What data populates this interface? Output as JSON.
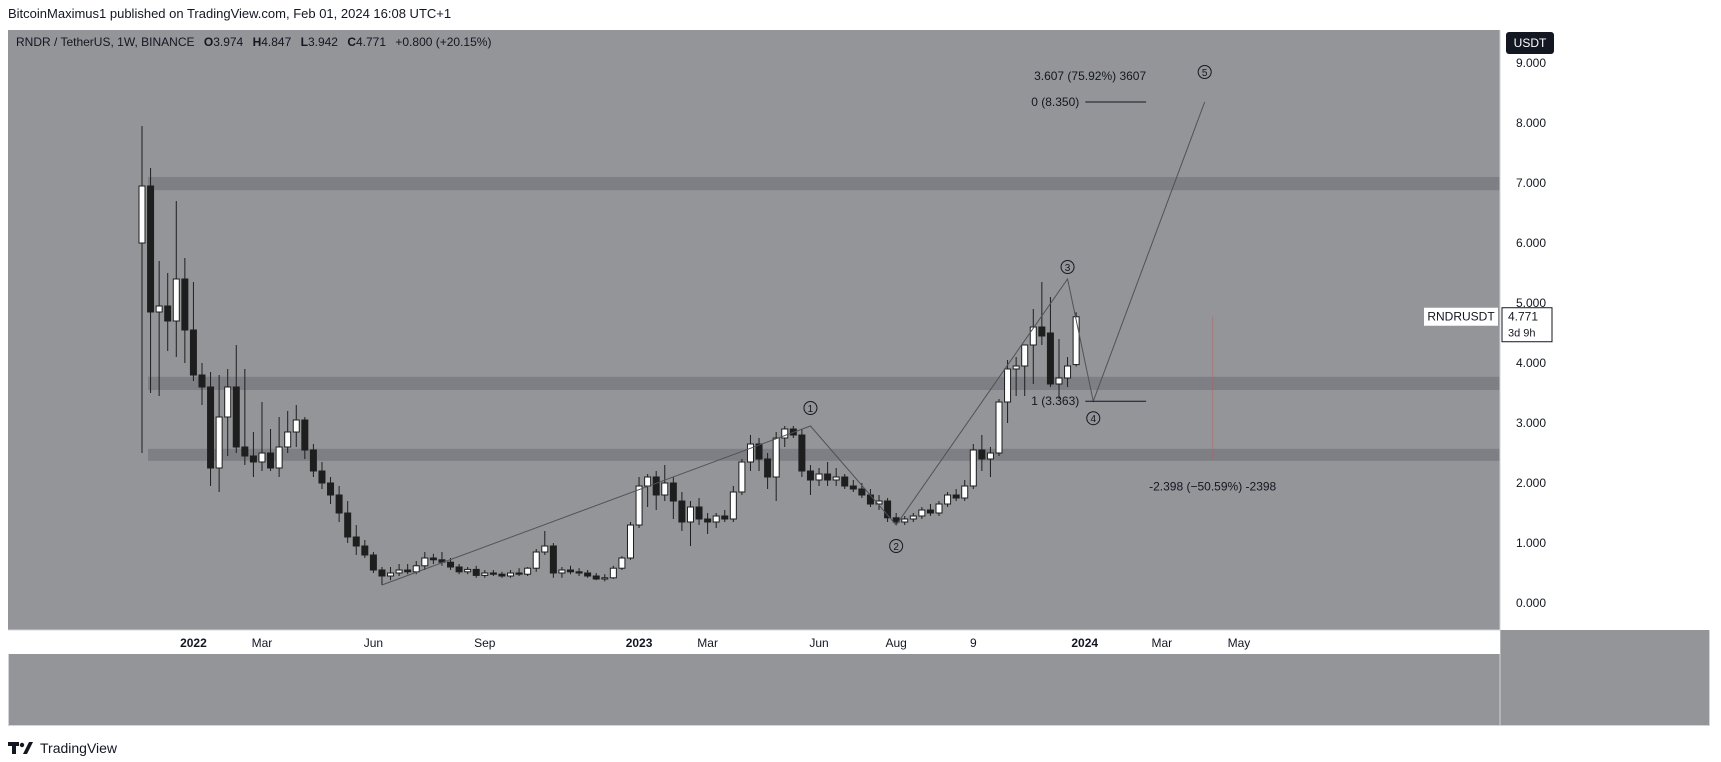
{
  "publish": {
    "text": "BitcoinMaximus1 published on TradingView.com, Feb 01, 2024 16:08 UTC+1"
  },
  "footer": {
    "brand": "TradingView",
    "logo_icon": "tradingview-logo-icon"
  },
  "colors": {
    "panel_bg": "#939598",
    "zone": "#7e7f84",
    "bull_candle": "#ffffff",
    "bear_candle": "#1e1e1e",
    "wick": "#1e1e1e",
    "wave_line": "#505257",
    "text": "#131722"
  },
  "chart_data": {
    "type": "candlestick",
    "symbol": "RNDR / TetherUS, 1W, BINANCE",
    "ohlc_header": {
      "o_label": "O",
      "o": "3.974",
      "h_label": "H",
      "h": "4.847",
      "l_label": "L",
      "l": "3.942",
      "c_label": "C",
      "c": "4.771",
      "change": "+0.800 (+20.15%)"
    },
    "currency_badge": "USDT",
    "price_label": {
      "symbol": "RNDRUSDT",
      "value": "4.771",
      "countdown": "3d 9h"
    },
    "y_ticks": [
      "9.000",
      "8.000",
      "7.000",
      "6.000",
      "5.000",
      "4.000",
      "3.000",
      "2.000",
      "1.000",
      "0.000"
    ],
    "ylim": [
      -0.45,
      9.55
    ],
    "x_ticks": [
      {
        "label": "2022",
        "i": 6
      },
      {
        "label": "Mar",
        "i": 14
      },
      {
        "label": "Jun",
        "i": 27
      },
      {
        "label": "Sep",
        "i": 40
      },
      {
        "label": "2023",
        "i": 58
      },
      {
        "label": "Mar",
        "i": 66
      },
      {
        "label": "Jun",
        "i": 79
      },
      {
        "label": "Aug",
        "i": 88
      },
      {
        "label": "9",
        "i": 97
      },
      {
        "label": "2024",
        "i": 110
      },
      {
        "label": "Mar",
        "i": 119
      },
      {
        "label": "May",
        "i": 128
      }
    ],
    "candles": [
      {
        "o": 6.0,
        "h": 7.95,
        "l": 2.5,
        "c": 6.95
      },
      {
        "o": 6.95,
        "h": 7.25,
        "l": 3.5,
        "c": 4.85
      },
      {
        "o": 4.85,
        "h": 5.7,
        "l": 3.45,
        "c": 4.95
      },
      {
        "o": 4.95,
        "h": 5.5,
        "l": 4.2,
        "c": 4.7
      },
      {
        "o": 4.7,
        "h": 6.7,
        "l": 4.1,
        "c": 5.4
      },
      {
        "o": 5.4,
        "h": 5.75,
        "l": 4.0,
        "c": 4.55
      },
      {
        "o": 4.55,
        "h": 5.35,
        "l": 3.7,
        "c": 3.8
      },
      {
        "o": 3.8,
        "h": 4.0,
        "l": 3.3,
        "c": 3.6
      },
      {
        "o": 3.6,
        "h": 3.85,
        "l": 1.95,
        "c": 2.25
      },
      {
        "o": 2.25,
        "h": 3.8,
        "l": 1.85,
        "c": 3.1
      },
      {
        "o": 3.1,
        "h": 3.9,
        "l": 2.45,
        "c": 3.6
      },
      {
        "o": 3.6,
        "h": 4.3,
        "l": 2.5,
        "c": 2.6
      },
      {
        "o": 2.6,
        "h": 3.9,
        "l": 2.3,
        "c": 2.45
      },
      {
        "o": 2.45,
        "h": 2.85,
        "l": 2.1,
        "c": 2.35
      },
      {
        "o": 2.35,
        "h": 3.35,
        "l": 2.2,
        "c": 2.5
      },
      {
        "o": 2.5,
        "h": 2.9,
        "l": 2.2,
        "c": 2.25
      },
      {
        "o": 2.25,
        "h": 3.1,
        "l": 2.1,
        "c": 2.6
      },
      {
        "o": 2.6,
        "h": 3.2,
        "l": 2.5,
        "c": 2.85
      },
      {
        "o": 2.85,
        "h": 3.3,
        "l": 2.6,
        "c": 3.05
      },
      {
        "o": 3.05,
        "h": 3.1,
        "l": 2.4,
        "c": 2.55
      },
      {
        "o": 2.55,
        "h": 2.65,
        "l": 2.1,
        "c": 2.2
      },
      {
        "o": 2.2,
        "h": 2.35,
        "l": 1.9,
        "c": 2.0
      },
      {
        "o": 2.0,
        "h": 2.1,
        "l": 1.65,
        "c": 1.8
      },
      {
        "o": 1.8,
        "h": 1.95,
        "l": 1.35,
        "c": 1.5
      },
      {
        "o": 1.5,
        "h": 1.7,
        "l": 1.0,
        "c": 1.1
      },
      {
        "o": 1.1,
        "h": 1.3,
        "l": 0.8,
        "c": 0.95
      },
      {
        "o": 0.95,
        "h": 1.05,
        "l": 0.75,
        "c": 0.8
      },
      {
        "o": 0.8,
        "h": 0.85,
        "l": 0.5,
        "c": 0.55
      },
      {
        "o": 0.55,
        "h": 0.6,
        "l": 0.3,
        "c": 0.45
      },
      {
        "o": 0.45,
        "h": 0.6,
        "l": 0.38,
        "c": 0.5
      },
      {
        "o": 0.5,
        "h": 0.65,
        "l": 0.45,
        "c": 0.55
      },
      {
        "o": 0.55,
        "h": 0.65,
        "l": 0.48,
        "c": 0.52
      },
      {
        "o": 0.52,
        "h": 0.7,
        "l": 0.48,
        "c": 0.62
      },
      {
        "o": 0.62,
        "h": 0.85,
        "l": 0.55,
        "c": 0.75
      },
      {
        "o": 0.75,
        "h": 0.82,
        "l": 0.65,
        "c": 0.72
      },
      {
        "o": 0.72,
        "h": 0.85,
        "l": 0.62,
        "c": 0.68
      },
      {
        "o": 0.68,
        "h": 0.75,
        "l": 0.55,
        "c": 0.6
      },
      {
        "o": 0.6,
        "h": 0.65,
        "l": 0.48,
        "c": 0.52
      },
      {
        "o": 0.52,
        "h": 0.6,
        "l": 0.48,
        "c": 0.56
      },
      {
        "o": 0.56,
        "h": 0.62,
        "l": 0.42,
        "c": 0.46
      },
      {
        "o": 0.46,
        "h": 0.55,
        "l": 0.42,
        "c": 0.5
      },
      {
        "o": 0.5,
        "h": 0.55,
        "l": 0.45,
        "c": 0.48
      },
      {
        "o": 0.48,
        "h": 0.52,
        "l": 0.42,
        "c": 0.45
      },
      {
        "o": 0.45,
        "h": 0.55,
        "l": 0.42,
        "c": 0.5
      },
      {
        "o": 0.5,
        "h": 0.58,
        "l": 0.45,
        "c": 0.48
      },
      {
        "o": 0.48,
        "h": 0.6,
        "l": 0.45,
        "c": 0.58
      },
      {
        "o": 0.58,
        "h": 0.9,
        "l": 0.52,
        "c": 0.85
      },
      {
        "o": 0.85,
        "h": 1.2,
        "l": 0.8,
        "c": 0.95
      },
      {
        "o": 0.95,
        "h": 1.0,
        "l": 0.42,
        "c": 0.5
      },
      {
        "o": 0.5,
        "h": 0.6,
        "l": 0.42,
        "c": 0.55
      },
      {
        "o": 0.55,
        "h": 0.62,
        "l": 0.48,
        "c": 0.52
      },
      {
        "o": 0.52,
        "h": 0.58,
        "l": 0.45,
        "c": 0.5
      },
      {
        "o": 0.5,
        "h": 0.55,
        "l": 0.42,
        "c": 0.45
      },
      {
        "o": 0.45,
        "h": 0.5,
        "l": 0.38,
        "c": 0.4
      },
      {
        "o": 0.4,
        "h": 0.48,
        "l": 0.36,
        "c": 0.42
      },
      {
        "o": 0.42,
        "h": 0.62,
        "l": 0.4,
        "c": 0.58
      },
      {
        "o": 0.58,
        "h": 0.78,
        "l": 0.55,
        "c": 0.75
      },
      {
        "o": 0.75,
        "h": 1.35,
        "l": 0.72,
        "c": 1.3
      },
      {
        "o": 1.3,
        "h": 2.1,
        "l": 1.25,
        "c": 1.95
      },
      {
        "o": 1.95,
        "h": 2.15,
        "l": 1.6,
        "c": 2.1
      },
      {
        "o": 2.1,
        "h": 2.2,
        "l": 1.55,
        "c": 1.8
      },
      {
        "o": 1.8,
        "h": 2.3,
        "l": 1.7,
        "c": 2.0
      },
      {
        "o": 2.0,
        "h": 2.1,
        "l": 1.4,
        "c": 1.7
      },
      {
        "o": 1.7,
        "h": 1.85,
        "l": 1.2,
        "c": 1.35
      },
      {
        "o": 1.35,
        "h": 1.7,
        "l": 0.95,
        "c": 1.6
      },
      {
        "o": 1.6,
        "h": 1.75,
        "l": 1.3,
        "c": 1.4
      },
      {
        "o": 1.4,
        "h": 1.5,
        "l": 1.15,
        "c": 1.35
      },
      {
        "o": 1.35,
        "h": 1.5,
        "l": 1.25,
        "c": 1.45
      },
      {
        "o": 1.45,
        "h": 1.55,
        "l": 1.35,
        "c": 1.4
      },
      {
        "o": 1.4,
        "h": 1.95,
        "l": 1.35,
        "c": 1.85
      },
      {
        "o": 1.85,
        "h": 2.4,
        "l": 1.8,
        "c": 2.35
      },
      {
        "o": 2.35,
        "h": 2.8,
        "l": 2.2,
        "c": 2.65
      },
      {
        "o": 2.65,
        "h": 2.75,
        "l": 2.2,
        "c": 2.4
      },
      {
        "o": 2.4,
        "h": 2.5,
        "l": 1.9,
        "c": 2.1
      },
      {
        "o": 2.1,
        "h": 2.85,
        "l": 1.7,
        "c": 2.75
      },
      {
        "o": 2.75,
        "h": 2.95,
        "l": 2.6,
        "c": 2.9
      },
      {
        "o": 2.9,
        "h": 2.95,
        "l": 2.75,
        "c": 2.8
      },
      {
        "o": 2.8,
        "h": 2.9,
        "l": 2.1,
        "c": 2.2
      },
      {
        "o": 2.2,
        "h": 2.3,
        "l": 1.8,
        "c": 2.05
      },
      {
        "o": 2.05,
        "h": 2.25,
        "l": 1.95,
        "c": 2.15
      },
      {
        "o": 2.15,
        "h": 2.35,
        "l": 1.95,
        "c": 2.05
      },
      {
        "o": 2.05,
        "h": 2.25,
        "l": 1.95,
        "c": 2.1
      },
      {
        "o": 2.1,
        "h": 2.15,
        "l": 1.9,
        "c": 1.95
      },
      {
        "o": 1.95,
        "h": 2.05,
        "l": 1.85,
        "c": 1.9
      },
      {
        "o": 1.9,
        "h": 2.0,
        "l": 1.75,
        "c": 1.8
      },
      {
        "o": 1.8,
        "h": 1.9,
        "l": 1.6,
        "c": 1.65
      },
      {
        "o": 1.65,
        "h": 1.8,
        "l": 1.55,
        "c": 1.7
      },
      {
        "o": 1.7,
        "h": 1.75,
        "l": 1.35,
        "c": 1.42
      },
      {
        "o": 1.42,
        "h": 1.5,
        "l": 1.3,
        "c": 1.35
      },
      {
        "o": 1.35,
        "h": 1.45,
        "l": 1.3,
        "c": 1.4
      },
      {
        "o": 1.4,
        "h": 1.5,
        "l": 1.35,
        "c": 1.45
      },
      {
        "o": 1.45,
        "h": 1.6,
        "l": 1.4,
        "c": 1.55
      },
      {
        "o": 1.55,
        "h": 1.65,
        "l": 1.45,
        "c": 1.5
      },
      {
        "o": 1.5,
        "h": 1.7,
        "l": 1.45,
        "c": 1.65
      },
      {
        "o": 1.65,
        "h": 1.85,
        "l": 1.6,
        "c": 1.8
      },
      {
        "o": 1.8,
        "h": 1.9,
        "l": 1.7,
        "c": 1.75
      },
      {
        "o": 1.75,
        "h": 2.05,
        "l": 1.7,
        "c": 1.95
      },
      {
        "o": 1.95,
        "h": 2.65,
        "l": 1.9,
        "c": 2.55
      },
      {
        "o": 2.55,
        "h": 2.8,
        "l": 2.2,
        "c": 2.4
      },
      {
        "o": 2.4,
        "h": 2.6,
        "l": 2.1,
        "c": 2.5
      },
      {
        "o": 2.5,
        "h": 3.4,
        "l": 2.45,
        "c": 3.35
      },
      {
        "o": 3.35,
        "h": 4.05,
        "l": 3.0,
        "c": 3.9
      },
      {
        "o": 3.9,
        "h": 4.1,
        "l": 3.45,
        "c": 3.95
      },
      {
        "o": 3.95,
        "h": 4.3,
        "l": 3.45,
        "c": 4.3
      },
      {
        "o": 4.3,
        "h": 4.9,
        "l": 3.65,
        "c": 4.6
      },
      {
        "o": 4.6,
        "h": 5.35,
        "l": 4.3,
        "c": 4.45
      },
      {
        "o": 4.5,
        "h": 5.1,
        "l": 3.6,
        "c": 3.65
      },
      {
        "o": 3.65,
        "h": 4.4,
        "l": 3.4,
        "c": 3.75
      },
      {
        "o": 3.75,
        "h": 4.1,
        "l": 3.6,
        "c": 3.95
      },
      {
        "o": 3.974,
        "h": 4.847,
        "l": 3.942,
        "c": 4.771
      }
    ],
    "zones": [
      {
        "from": 6.88,
        "to": 7.1
      },
      {
        "from": 3.55,
        "to": 3.77
      },
      {
        "from": 2.37,
        "to": 2.57
      }
    ],
    "wave_path": [
      {
        "i": 28,
        "price": 0.3
      },
      {
        "i": 78,
        "price": 2.95
      },
      {
        "i": 88,
        "price": 1.3
      },
      {
        "i": 108,
        "price": 5.4
      },
      {
        "i": 111,
        "price": 3.363
      },
      {
        "i": 124,
        "price": 8.35
      }
    ],
    "wave_labels": [
      {
        "label": "1",
        "i": 78,
        "price": 3.25
      },
      {
        "label": "2",
        "i": 88,
        "price": 0.95
      },
      {
        "label": "3",
        "i": 108,
        "price": 5.6
      },
      {
        "label": "4",
        "i": 111,
        "price": 3.08
      },
      {
        "label": "5",
        "i": 124,
        "price": 8.85
      }
    ],
    "fib_label_top": "3.607 (75.92%) 3607",
    "fib_levels": [
      {
        "text": "0 (8.350)",
        "price": 8.35
      },
      {
        "text": "1 (3.363)",
        "price": 3.363
      }
    ],
    "measure_label": "-2.398 (−50.59%) -2398",
    "measure_range": [
      2.373,
      4.771
    ]
  }
}
